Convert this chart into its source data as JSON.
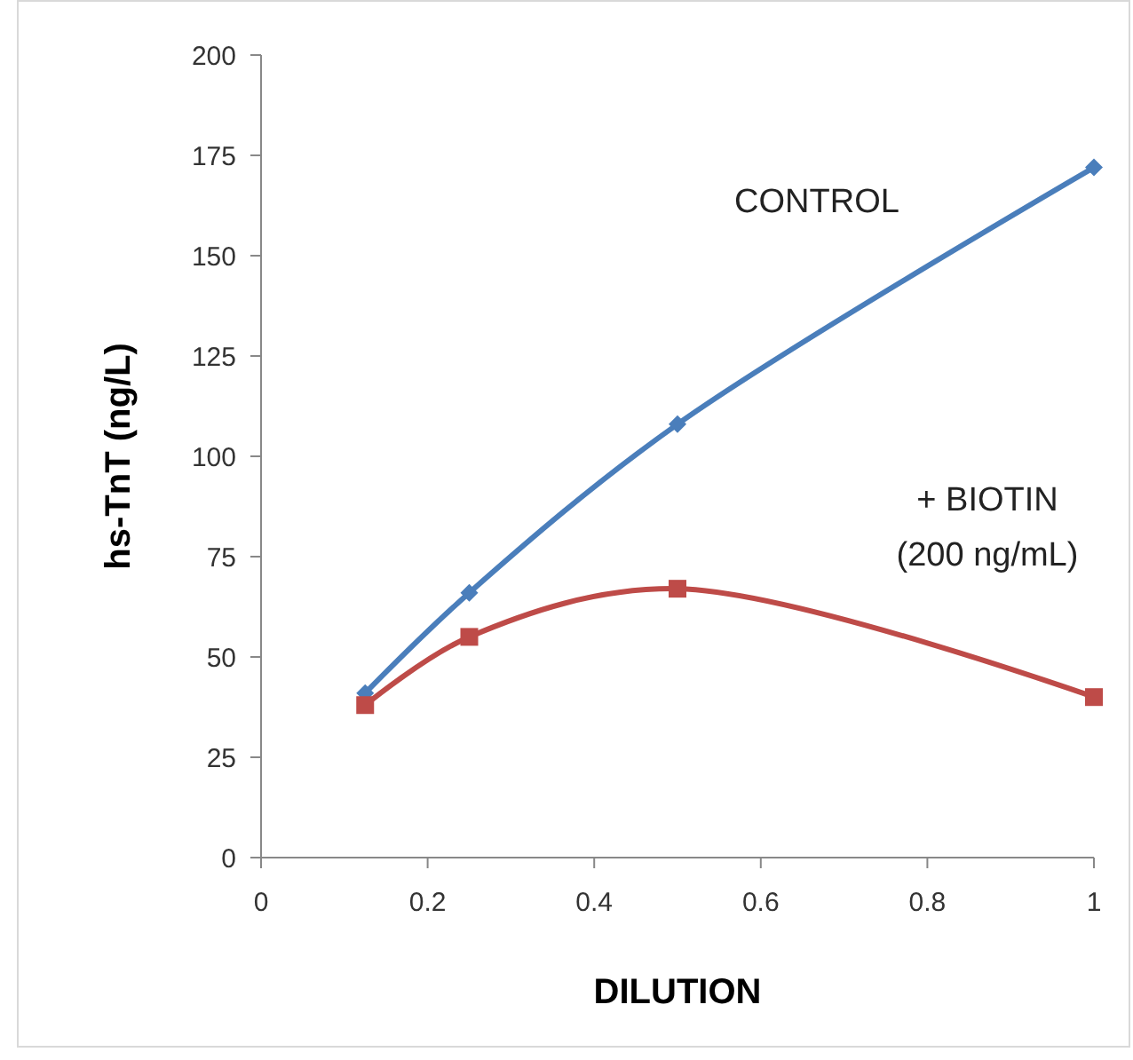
{
  "chart_data": {
    "type": "line",
    "xlabel": "DILUTION",
    "ylabel": "hs-TnT (ng/L)",
    "xlim": [
      0,
      1
    ],
    "xticks": [
      0,
      0.2,
      0.4,
      0.6,
      0.8,
      1
    ],
    "ylim": [
      0,
      200
    ],
    "yticks": [
      0,
      25,
      50,
      75,
      100,
      125,
      150,
      175,
      200
    ],
    "line_style": "solid",
    "series": [
      {
        "name": "CONTROL",
        "color": "#4a7ebb",
        "marker": "diamond",
        "x": [
          0.125,
          0.25,
          0.5,
          1
        ],
        "values": [
          41,
          66,
          108,
          172
        ]
      },
      {
        "name": "+ BIOTIN (200 ng/mL)",
        "color": "#be4b48",
        "marker": "square",
        "x": [
          0.125,
          0.25,
          0.5,
          1
        ],
        "values": [
          38,
          55,
          67,
          40
        ]
      }
    ]
  }
}
